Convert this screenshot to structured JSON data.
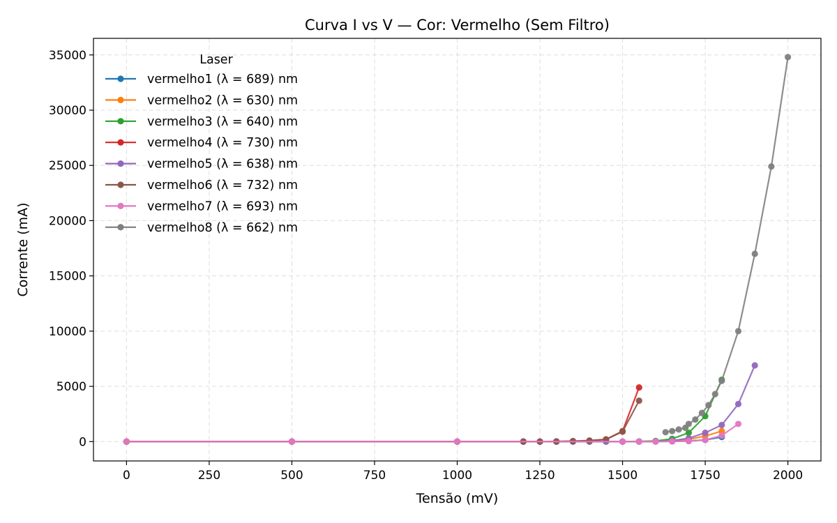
{
  "chart_data": {
    "type": "line",
    "title": "Curva I vs V — Cor: Vermelho (Sem Filtro)",
    "xlabel": "Tensão (mV)",
    "ylabel": "Corrente (mA)",
    "xlim": [
      -100,
      2100
    ],
    "ylim": [
      -1750,
      36500
    ],
    "xticks": [
      0,
      250,
      500,
      750,
      1000,
      1250,
      1500,
      1750,
      2000
    ],
    "yticks": [
      0,
      5000,
      10000,
      15000,
      20000,
      25000,
      30000,
      35000
    ],
    "grid": true,
    "legend": {
      "title": "Laser",
      "position": "top-left"
    },
    "series": [
      {
        "name": "vermelho1 (λ = 689) nm",
        "color": "#1f77b4",
        "x": [
          0,
          500,
          1000,
          1200,
          1250,
          1300,
          1350,
          1400,
          1450,
          1500,
          1550,
          1600,
          1650,
          1700,
          1750,
          1800
        ],
        "y": [
          0,
          0,
          0,
          0,
          0,
          0,
          0,
          0,
          0,
          0,
          5,
          10,
          20,
          60,
          150,
          420
        ]
      },
      {
        "name": "vermelho2 (λ = 630) nm",
        "color": "#ff7f0e",
        "x": [
          0,
          500,
          1000,
          1200,
          1250,
          1300,
          1350,
          1400,
          1450,
          1500,
          1550,
          1600,
          1650,
          1700,
          1750,
          1800
        ],
        "y": [
          0,
          0,
          0,
          0,
          0,
          0,
          0,
          0,
          0,
          0,
          10,
          30,
          80,
          200,
          500,
          950
        ]
      },
      {
        "name": "vermelho3 (λ = 640) nm",
        "color": "#2ca02c",
        "x": [
          0,
          500,
          1000,
          1200,
          1250,
          1300,
          1350,
          1400,
          1450,
          1500,
          1550,
          1600,
          1650,
          1700,
          1750,
          1800
        ],
        "y": [
          0,
          0,
          0,
          0,
          0,
          0,
          0,
          0,
          0,
          0,
          20,
          60,
          250,
          800,
          2300,
          5600
        ]
      },
      {
        "name": "vermelho4 (λ = 730) nm",
        "color": "#d62728",
        "x": [
          0,
          500,
          1000,
          1200,
          1250,
          1300,
          1350,
          1400,
          1450,
          1500,
          1550
        ],
        "y": [
          0,
          0,
          0,
          0,
          0,
          10,
          30,
          80,
          200,
          950,
          4900
        ]
      },
      {
        "name": "vermelho5 (λ = 638) nm",
        "color": "#9467bd",
        "x": [
          0,
          500,
          1000,
          1200,
          1250,
          1300,
          1350,
          1400,
          1450,
          1500,
          1550,
          1600,
          1650,
          1700,
          1750,
          1800,
          1850,
          1900
        ],
        "y": [
          0,
          0,
          0,
          0,
          0,
          0,
          0,
          0,
          0,
          0,
          0,
          10,
          80,
          300,
          800,
          1500,
          3400,
          6900
        ]
      },
      {
        "name": "vermelho6 (λ = 732) nm",
        "color": "#8c564b",
        "x": [
          0,
          500,
          1000,
          1200,
          1250,
          1300,
          1350,
          1400,
          1450,
          1500,
          1550
        ],
        "y": [
          0,
          0,
          0,
          0,
          0,
          20,
          50,
          100,
          200,
          900,
          3700
        ]
      },
      {
        "name": "vermelho7 (λ = 693) nm",
        "color": "#e377c2",
        "x": [
          0,
          500,
          1000,
          1500,
          1550,
          1600,
          1650,
          1700,
          1750,
          1800,
          1850
        ],
        "y": [
          0,
          0,
          0,
          0,
          0,
          0,
          20,
          50,
          150,
          550,
          1600
        ]
      },
      {
        "name": "vermelho8 (λ = 662) nm",
        "color": "#7f7f7f",
        "x": [
          1630,
          1650,
          1670,
          1690,
          1700,
          1720,
          1740,
          1760,
          1780,
          1800,
          1850,
          1900,
          1950,
          2000
        ],
        "y": [
          850,
          950,
          1100,
          1250,
          1600,
          2000,
          2600,
          3300,
          4300,
          5500,
          10000,
          17000,
          24900,
          34800
        ]
      }
    ]
  }
}
